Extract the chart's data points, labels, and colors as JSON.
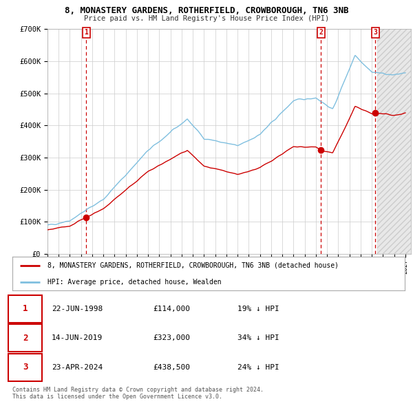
{
  "title": "8, MONASTERY GARDENS, ROTHERFIELD, CROWBOROUGH, TN6 3NB",
  "subtitle": "Price paid vs. HM Land Registry's House Price Index (HPI)",
  "ylim": [
    0,
    700000
  ],
  "xlim_start": 1995.0,
  "xlim_end": 2027.5,
  "sale_dates": [
    1998.47,
    2019.45,
    2024.31
  ],
  "sale_prices": [
    114000,
    323000,
    438500
  ],
  "sale_labels": [
    "1",
    "2",
    "3"
  ],
  "sale_info": [
    {
      "label": "1",
      "date": "22-JUN-1998",
      "price": "£114,000",
      "pct": "19% ↓ HPI"
    },
    {
      "label": "2",
      "date": "14-JUN-2019",
      "price": "£323,000",
      "pct": "34% ↓ HPI"
    },
    {
      "label": "3",
      "date": "23-APR-2024",
      "price": "£438,500",
      "pct": "24% ↓ HPI"
    }
  ],
  "legend_line1": "8, MONASTERY GARDENS, ROTHERFIELD, CROWBOROUGH, TN6 3NB (detached house)",
  "legend_line2": "HPI: Average price, detached house, Wealden",
  "footnote1": "Contains HM Land Registry data © Crown copyright and database right 2024.",
  "footnote2": "This data is licensed under the Open Government Licence v3.0.",
  "hpi_color": "#7fbfdf",
  "price_color": "#cc0000",
  "marker_color": "#cc0000",
  "vline_color": "#cc0000",
  "background_color": "#ffffff",
  "grid_color": "#cccccc",
  "hatch_start": 2024.5
}
